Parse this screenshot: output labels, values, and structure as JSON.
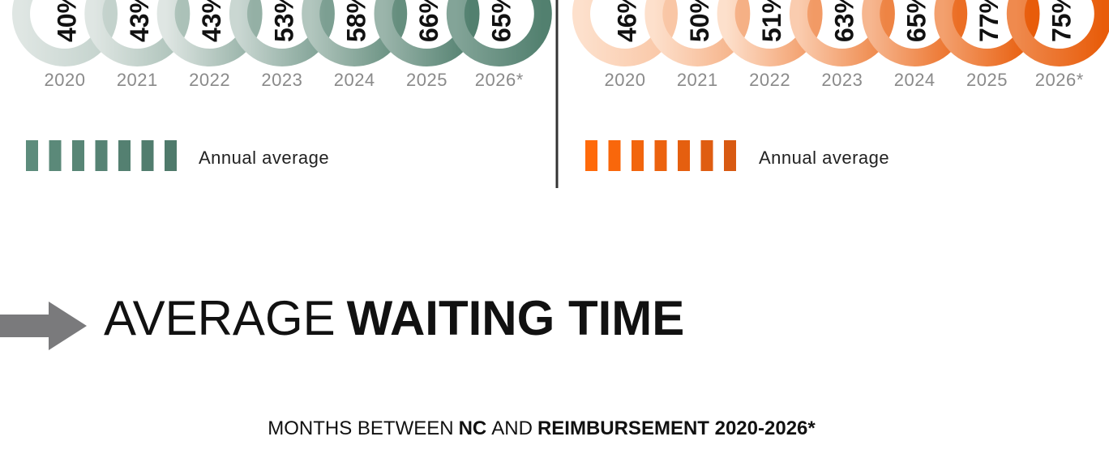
{
  "panels": [
    {
      "rings": [
        {
          "label": "40%",
          "year": "2020"
        },
        {
          "label": "43%",
          "year": "2021"
        },
        {
          "label": "43%",
          "year": "2022"
        },
        {
          "label": "53%",
          "year": "2023"
        },
        {
          "label": "58%",
          "year": "2024"
        },
        {
          "label": "66%",
          "year": "2025"
        },
        {
          "label": "65%",
          "year": "2026*"
        }
      ],
      "legend": "Annual average"
    },
    {
      "rings": [
        {
          "label": "46%",
          "year": "2020"
        },
        {
          "label": "50%",
          "year": "2021"
        },
        {
          "label": "51%",
          "year": "2022"
        },
        {
          "label": "63%",
          "year": "2023"
        },
        {
          "label": "65%",
          "year": "2024"
        },
        {
          "label": "77%",
          "year": "2025"
        },
        {
          "label": "75%",
          "year": "2026*"
        }
      ],
      "legend": "Annual average"
    }
  ],
  "heading": {
    "light": "AVERAGE",
    "bold": "WAITING TIME"
  },
  "subtitle": {
    "part1": "MONTHS BETWEEN",
    "part2": "NC",
    "part3": "AND",
    "part4": "REIMBURSEMENT 2020-2026*"
  }
}
